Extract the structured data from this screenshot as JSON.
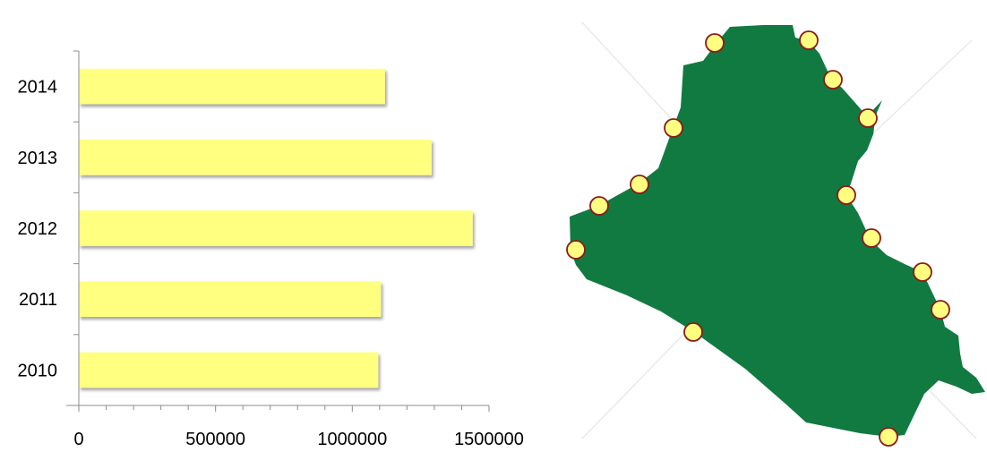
{
  "chart_data": {
    "type": "bar",
    "orientation": "horizontal",
    "categories": [
      "2014",
      "2013",
      "2012",
      "2011",
      "2010"
    ],
    "values": [
      1120000,
      1290000,
      1440000,
      1105000,
      1095000
    ],
    "xlim": [
      0,
      1500000
    ],
    "xticks": [
      "0",
      "500000",
      "1000000",
      "1500000"
    ],
    "grid": false,
    "legend": "none",
    "bar_color": "#FFFF80"
  },
  "map": {
    "fill_color": "#117A41",
    "marker_fill": "#FFFF80",
    "marker_stroke": "#8B1A1A"
  }
}
